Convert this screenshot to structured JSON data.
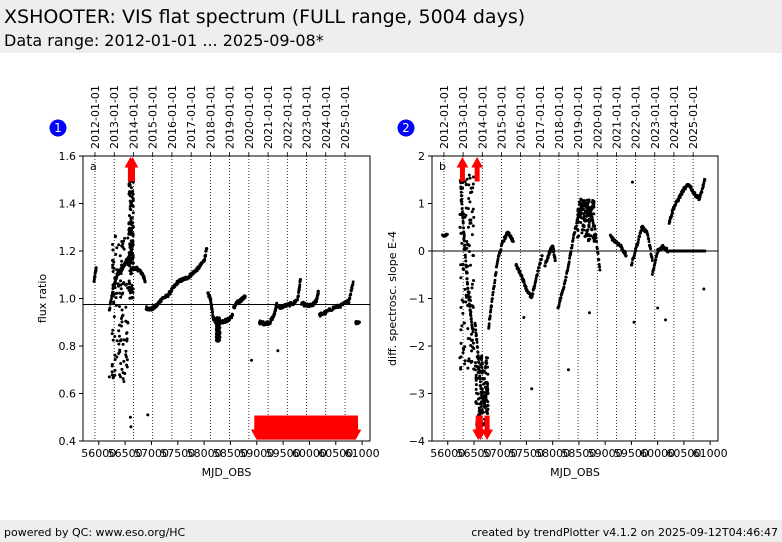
{
  "header": {
    "title": "XSHOOTER: VIS flat spectrum (FULL range, 5004 days)",
    "subtitle": "Data range: 2012-01-01 ... 2025-09-08*"
  },
  "footer": {
    "left": "powered by QC: www.eso.org/HC",
    "right": "created by trendPlotter v4.1.2 on 2025-09-12T04:46:47"
  },
  "colors": {
    "points": "#000000",
    "outlier": "#ff0000",
    "badge": "#0000ff"
  },
  "chart_data": [
    {
      "type": "scatter",
      "badge": "1",
      "panel_letter": "a",
      "xlabel": "MJD_OBS",
      "ylabel": "flux ratio",
      "xlim": [
        55700,
        61150
      ],
      "ylim": [
        0.4,
        1.6
      ],
      "xticks": [
        56000,
        56500,
        57000,
        57500,
        58000,
        58500,
        59000,
        59500,
        60000,
        60500,
        61000
      ],
      "xtick_labels": [
        "56000",
        "56500",
        "57000",
        "57500",
        "58000",
        "58500",
        "59000",
        "59500",
        "60000",
        "60500",
        "61000"
      ],
      "yticks": [
        0.4,
        0.6,
        0.8,
        1.0,
        1.2,
        1.4,
        1.6
      ],
      "ytick_labels": [
        "0.4",
        "0.6",
        "0.8",
        "1.0",
        "1.2",
        "1.4",
        "1.6"
      ],
      "reference_line": 0.975,
      "segments": [
        {
          "x": [
            55910,
            55950
          ],
          "y": [
            1.07,
            1.13
          ]
        },
        {
          "x": [
            56200,
            56280,
            56350,
            56420,
            56480,
            56530,
            56600,
            56650
          ],
          "y": [
            0.95,
            1.05,
            1.1,
            1.12,
            1.14,
            1.16,
            1.18,
            1.24
          ]
        },
        {
          "x": [
            56680,
            56760,
            56840,
            56880
          ],
          "y": [
            1.13,
            1.12,
            1.1,
            1.07
          ]
        },
        {
          "x": [
            56900,
            57000,
            57100,
            57200,
            57300,
            57400,
            57500,
            57600,
            57700,
            57800,
            57900,
            58000,
            58050
          ],
          "y": [
            0.96,
            0.955,
            0.97,
            1.0,
            1.01,
            1.04,
            1.07,
            1.08,
            1.09,
            1.11,
            1.13,
            1.16,
            1.21
          ]
        },
        {
          "x": [
            58070,
            58120,
            58170,
            58230,
            58300,
            58380,
            58460,
            58540
          ],
          "y": [
            1.02,
            1.0,
            0.92,
            0.9,
            0.9,
            0.905,
            0.91,
            0.93
          ]
        },
        {
          "x": [
            58560,
            58620,
            58680,
            58740,
            58780
          ],
          "y": [
            0.96,
            0.98,
            0.99,
            1.0,
            1.01
          ]
        },
        {
          "x": [
            59050,
            59150,
            59250,
            59330,
            59380
          ],
          "y": [
            0.9,
            0.895,
            0.9,
            0.93,
            0.98
          ]
        },
        {
          "x": [
            59400,
            59550,
            59700,
            59780,
            59830
          ],
          "y": [
            0.96,
            0.97,
            0.98,
            1.0,
            1.08
          ]
        },
        {
          "x": [
            59850,
            59950,
            60050,
            60130,
            60170
          ],
          "y": [
            0.98,
            0.97,
            0.97,
            0.99,
            1.03
          ]
        },
        {
          "x": [
            60190,
            60300,
            60450,
            60600,
            60750,
            60830
          ],
          "y": [
            0.93,
            0.94,
            0.96,
            0.97,
            0.99,
            1.07
          ]
        },
        {
          "x": [
            60880,
            60950
          ],
          "y": [
            0.9,
            0.9
          ]
        }
      ],
      "scatter_clusters": [
        {
          "x_range": [
            56250,
            56560
          ],
          "y_range": [
            0.65,
            1.28
          ]
        },
        {
          "x_range": [
            56570,
            56660
          ],
          "y_range": [
            1.0,
            1.52
          ]
        },
        {
          "x_range": [
            58230,
            58300
          ],
          "y_range": [
            0.82,
            0.92
          ]
        }
      ],
      "singles": [
        {
          "x": 56600,
          "y": 0.5
        },
        {
          "x": 56610,
          "y": 0.46
        },
        {
          "x": 56930,
          "y": 0.51
        },
        {
          "x": 58900,
          "y": 0.74
        },
        {
          "x": 59400,
          "y": 0.78
        },
        {
          "x": 56200,
          "y": 0.67
        },
        {
          "x": 56260,
          "y": 1.16
        }
      ],
      "outliers_top": [
        56600,
        56640
      ],
      "outliers_bottom_range": [
        59000,
        60880
      ]
    },
    {
      "type": "scatter",
      "badge": "2",
      "panel_letter": "b",
      "xlabel": "MJD_OBS",
      "ylabel": "diff. spectrosc. slope E-4",
      "xlim": [
        55700,
        61150
      ],
      "ylim": [
        -4,
        2
      ],
      "xticks": [
        56000,
        56500,
        57000,
        57500,
        58000,
        58500,
        59000,
        59500,
        60000,
        60500,
        61000
      ],
      "xtick_labels": [
        "56000",
        "56500",
        "57000",
        "57500",
        "58000",
        "58500",
        "59000",
        "59500",
        "60000",
        "60500",
        "61000"
      ],
      "yticks": [
        -4,
        -3,
        -2,
        -1,
        0,
        1,
        2
      ],
      "ytick_labels": [
        "−4",
        "−3",
        "−2",
        "−1",
        "0",
        "1",
        "2"
      ],
      "reference_line": 0,
      "segments": [
        {
          "x": [
            55900,
            55990
          ],
          "y": [
            0.3,
            0.35
          ]
        },
        {
          "x": [
            56240,
            56300,
            56360,
            56420,
            56480
          ],
          "y": [
            1.5,
            0.5,
            -0.5,
            -1.2,
            -1.7
          ]
        },
        {
          "x": [
            56520,
            56580,
            56640,
            56700,
            56760
          ],
          "y": [
            -1.5,
            -2.2,
            -3.0,
            -3.2,
            -2.8
          ]
        },
        {
          "x": [
            56780,
            56850,
            56950,
            57050,
            57150,
            57250
          ],
          "y": [
            -1.6,
            -1.0,
            -0.2,
            0.2,
            0.4,
            0.2
          ]
        },
        {
          "x": [
            57300,
            57400,
            57500,
            57600,
            57700,
            57800
          ],
          "y": [
            -0.3,
            -0.5,
            -0.8,
            -1.0,
            -0.5,
            -0.1
          ]
        },
        {
          "x": [
            57850,
            57950,
            58000,
            58050
          ],
          "y": [
            -0.3,
            0.0,
            0.1,
            -0.2
          ]
        },
        {
          "x": [
            58100,
            58200,
            58300,
            58400,
            58500,
            58600,
            58700,
            58800,
            58900
          ],
          "y": [
            -1.2,
            -0.8,
            -0.3,
            0.3,
            0.8,
            1.0,
            0.8,
            0.5,
            -0.4
          ]
        },
        {
          "x": [
            59100,
            59200,
            59300,
            59400
          ],
          "y": [
            0.3,
            0.2,
            0.1,
            -0.1
          ]
        },
        {
          "x": [
            59500,
            59600,
            59700,
            59800,
            59900
          ],
          "y": [
            -0.3,
            0.1,
            0.5,
            0.4,
            -0.2
          ]
        },
        {
          "x": [
            59900,
            60000,
            60100,
            60200
          ],
          "y": [
            -0.5,
            0.0,
            0.1,
            0.0
          ]
        },
        {
          "x": [
            60220,
            60300,
            60400,
            60500,
            60600,
            60700,
            60800,
            60900
          ],
          "y": [
            0.6,
            0.9,
            1.1,
            1.3,
            1.4,
            1.2,
            1.1,
            1.5
          ]
        }
      ],
      "scatter_clusters": [
        {
          "x_range": [
            56230,
            56500
          ],
          "y_range": [
            -2.5,
            1.6
          ]
        },
        {
          "x_range": [
            56520,
            56770
          ],
          "y_range": [
            -3.8,
            -2.2
          ]
        },
        {
          "x_range": [
            58470,
            58800
          ],
          "y_range": [
            0.2,
            1.1
          ]
        }
      ],
      "zero_run": [
        60220,
        60900
      ],
      "singles": [
        {
          "x": 55990,
          "y": 0.35
        },
        {
          "x": 57600,
          "y": -2.9
        },
        {
          "x": 57450,
          "y": -1.4
        },
        {
          "x": 58700,
          "y": -1.3
        },
        {
          "x": 59550,
          "y": -1.5
        },
        {
          "x": 59520,
          "y": 1.45
        },
        {
          "x": 60000,
          "y": -1.2
        },
        {
          "x": 60150,
          "y": -1.45
        },
        {
          "x": 60880,
          "y": -0.8
        },
        {
          "x": 58300,
          "y": -2.5
        }
      ],
      "outliers_top": [
        56280,
        56560
      ],
      "outliers_bottom": [
        56580,
        56620,
        56750
      ]
    }
  ],
  "date_axis": {
    "labels": [
      "2012-01-01",
      "2013-01-01",
      "2014-01-01",
      "2015-01-01",
      "2016-01-01",
      "2017-01-01",
      "2018-01-01",
      "2019-01-01",
      "2020-01-01",
      "2021-01-01",
      "2022-01-01",
      "2023-01-01",
      "2024-01-01",
      "2025-01-01"
    ],
    "mjd": [
      55927,
      56293,
      56658,
      57023,
      57388,
      57754,
      58119,
      58484,
      58849,
      59215,
      59580,
      59945,
      60310,
      60676
    ]
  }
}
